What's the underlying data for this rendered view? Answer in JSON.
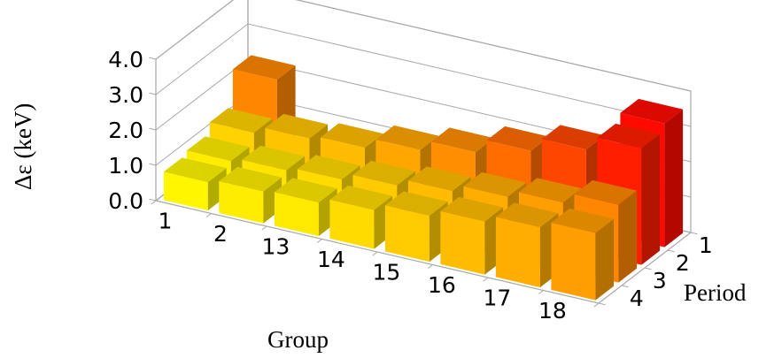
{
  "chart_data": {
    "type": "bar3d",
    "ylabel": "Δε (keV)",
    "xlabel": "Group",
    "zlabel": "Period",
    "ylim": [
      0,
      4
    ],
    "y_ticks": [
      "0.0",
      "1.0",
      "2.0",
      "3.0",
      "4.0"
    ],
    "categories": [
      "1",
      "2",
      "13",
      "14",
      "15",
      "16",
      "17",
      "18"
    ],
    "periods": [
      "1",
      "2",
      "3",
      "4"
    ],
    "series": [
      {
        "name": "1",
        "values": [
          2.2,
          null,
          null,
          null,
          null,
          null,
          null,
          3.5
        ]
      },
      {
        "name": "2",
        "values": [
          1.2,
          1.4,
          1.5,
          1.8,
          2.1,
          2.5,
          2.9,
          3.3
        ]
      },
      {
        "name": "3",
        "values": [
          0.9,
          1.0,
          1.1,
          1.3,
          1.5,
          1.7,
          1.9,
          2.2
        ]
      },
      {
        "name": "4",
        "values": [
          0.8,
          0.9,
          0.95,
          1.1,
          1.3,
          1.5,
          1.7,
          1.9
        ]
      }
    ],
    "grid": true,
    "colormap": [
      "#ffff00",
      "#ffd400",
      "#ffb000",
      "#ff8a00",
      "#ff6000",
      "#ff3000",
      "#ff0000"
    ]
  }
}
